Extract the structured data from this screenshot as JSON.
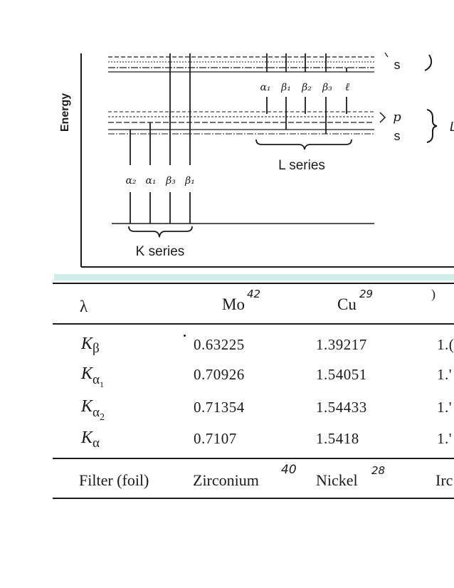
{
  "diagram": {
    "energy_axis_label": "Energy",
    "shell_labels": {
      "s_top": "s",
      "p": "p",
      "s_mid": "s",
      "brace_edge": "L"
    },
    "l_series": {
      "lines": [
        "α₁",
        "β₁",
        "β₂",
        "β₃",
        "ℓ"
      ],
      "label": "L series"
    },
    "k_series": {
      "lines": [
        "α₂",
        "α₁",
        "β₃",
        "β₁"
      ],
      "label": "K series"
    }
  },
  "table": {
    "header": {
      "lambda": "λ",
      "cols": [
        {
          "name": "Mo",
          "note": "42"
        },
        {
          "name": "Cu",
          "note": "29"
        }
      ],
      "partial_mark": ")"
    },
    "rows": [
      {
        "symbol": "K",
        "sub": "β",
        "subsub": "",
        "mo": "0.63225",
        "cu": "1.39217",
        "cut": "1.("
      },
      {
        "symbol": "K",
        "sub": "α",
        "subsub": "1",
        "mo": "0.70926",
        "cu": "1.54051",
        "cut": "1.'"
      },
      {
        "symbol": "K",
        "sub": "α",
        "subsub": "2",
        "mo": "0.71354",
        "cu": "1.54433",
        "cut": "1.'"
      },
      {
        "symbol": "K",
        "sub": "α",
        "subsub": "",
        "mo": "0.7107",
        "cu": "1.5418",
        "cut": "1.'"
      }
    ],
    "filter": {
      "label": "Filter (foil)",
      "mo_filter": "Zirconium",
      "mo_note": "40",
      "cu_filter": "Nickel",
      "cu_note": "28",
      "cut": "Irc"
    }
  }
}
